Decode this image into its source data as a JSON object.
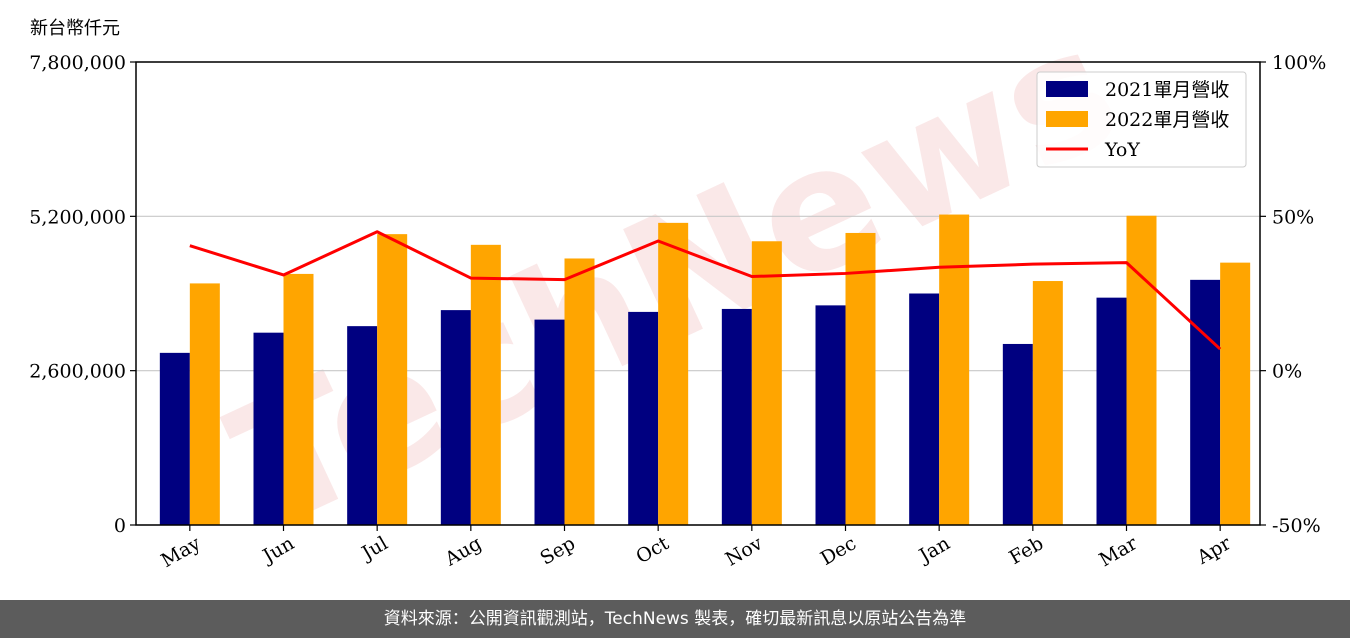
{
  "chart_data": {
    "type": "bar",
    "unit_label": "新台幣仟元",
    "categories": [
      "May",
      "Jun",
      "Jul",
      "Aug",
      "Sep",
      "Oct",
      "Nov",
      "Dec",
      "Jan",
      "Feb",
      "Mar",
      "Apr"
    ],
    "series": [
      {
        "name": "2021單月營收",
        "kind": "bar",
        "color": "#000080",
        "values": [
          2900000,
          3240000,
          3350000,
          3620000,
          3460000,
          3590000,
          3640000,
          3700000,
          3900000,
          3050000,
          3830000,
          4130000
        ]
      },
      {
        "name": "2022單月營收",
        "kind": "bar",
        "color": "#ffa500",
        "values": [
          4070000,
          4230000,
          4900000,
          4720000,
          4490000,
          5090000,
          4780000,
          4920000,
          5230000,
          4110000,
          5210000,
          4420000
        ]
      },
      {
        "name": "YoY",
        "kind": "line",
        "axis": "right",
        "color": "#ff0000",
        "values": [
          40.5,
          31.0,
          45.0,
          30.0,
          29.5,
          42.0,
          30.5,
          31.5,
          33.5,
          34.5,
          35.0,
          7.0
        ]
      }
    ],
    "ylim": [
      0,
      7800000
    ],
    "yticks": [
      "0",
      "2,600,000",
      "5,200,000",
      "7,800,000"
    ],
    "y2lim": [
      -50,
      100
    ],
    "y2ticks": [
      "-50%",
      "0%",
      "50%",
      "100%"
    ],
    "grid": "horizontal",
    "legend_position": "top-right"
  },
  "watermark": "TechNews",
  "footer": "資料來源：公開資訊觀測站，TechNews 製表，確切最新訊息以原站公告為準"
}
